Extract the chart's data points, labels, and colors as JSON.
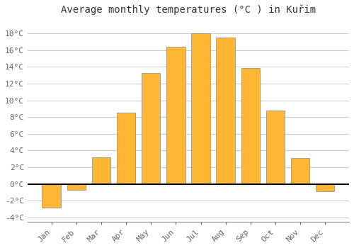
{
  "months": [
    "Jan",
    "Feb",
    "Mar",
    "Apr",
    "May",
    "Jun",
    "Jul",
    "Aug",
    "Sep",
    "Oct",
    "Nov",
    "Dec"
  ],
  "temperatures": [
    -2.8,
    -0.7,
    3.2,
    8.5,
    13.3,
    16.4,
    18.0,
    17.5,
    13.9,
    8.8,
    3.1,
    -0.9
  ],
  "bar_color": "#FFB733",
  "bar_edge_color": "#888888",
  "title": "Average monthly temperatures (°C ) in Kuřim",
  "ylim": [
    -4.5,
    19.5
  ],
  "yticks": [
    -4,
    -2,
    0,
    2,
    4,
    6,
    8,
    10,
    12,
    14,
    16,
    18
  ],
  "ytick_labels": [
    "-4°C",
    "-2°C",
    "0°C",
    "2°C",
    "4°C",
    "6°C",
    "8°C",
    "10°C",
    "12°C",
    "14°C",
    "16°C",
    "18°C"
  ],
  "background_color": "#FFFFFF",
  "plot_bg_color": "#FFFFFF",
  "grid_color": "#CCCCCC",
  "zero_line_color": "#000000",
  "tick_color": "#666666",
  "title_fontsize": 10,
  "tick_fontsize": 8,
  "figsize": [
    5.0,
    3.5
  ],
  "dpi": 100
}
